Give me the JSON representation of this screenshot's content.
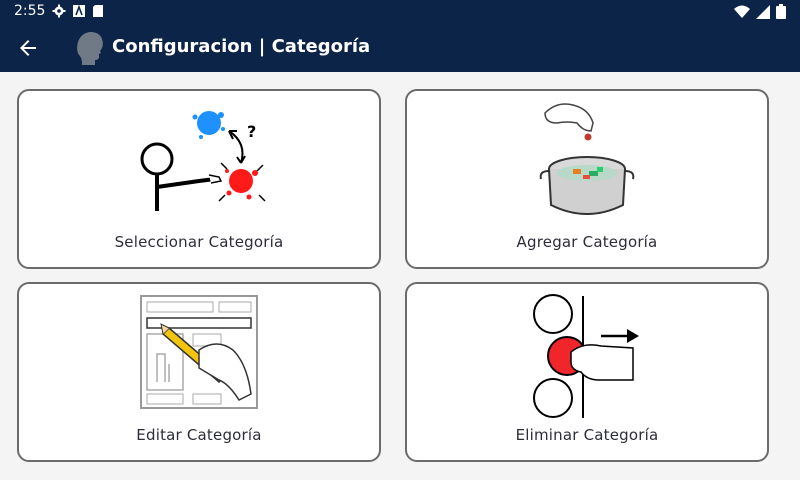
{
  "status": {
    "time": "2:55"
  },
  "header": {
    "title": "Configuracion | Categoría"
  },
  "cards": [
    {
      "label": "Seleccionar Categoría"
    },
    {
      "label": "Agregar Categoría"
    },
    {
      "label": "Editar Categoría"
    },
    {
      "label": "Eliminar Categoría"
    }
  ],
  "colors": {
    "app_bar": "#0b2447",
    "card_border": "#6b6b6b",
    "background": "#f4f4f4"
  }
}
